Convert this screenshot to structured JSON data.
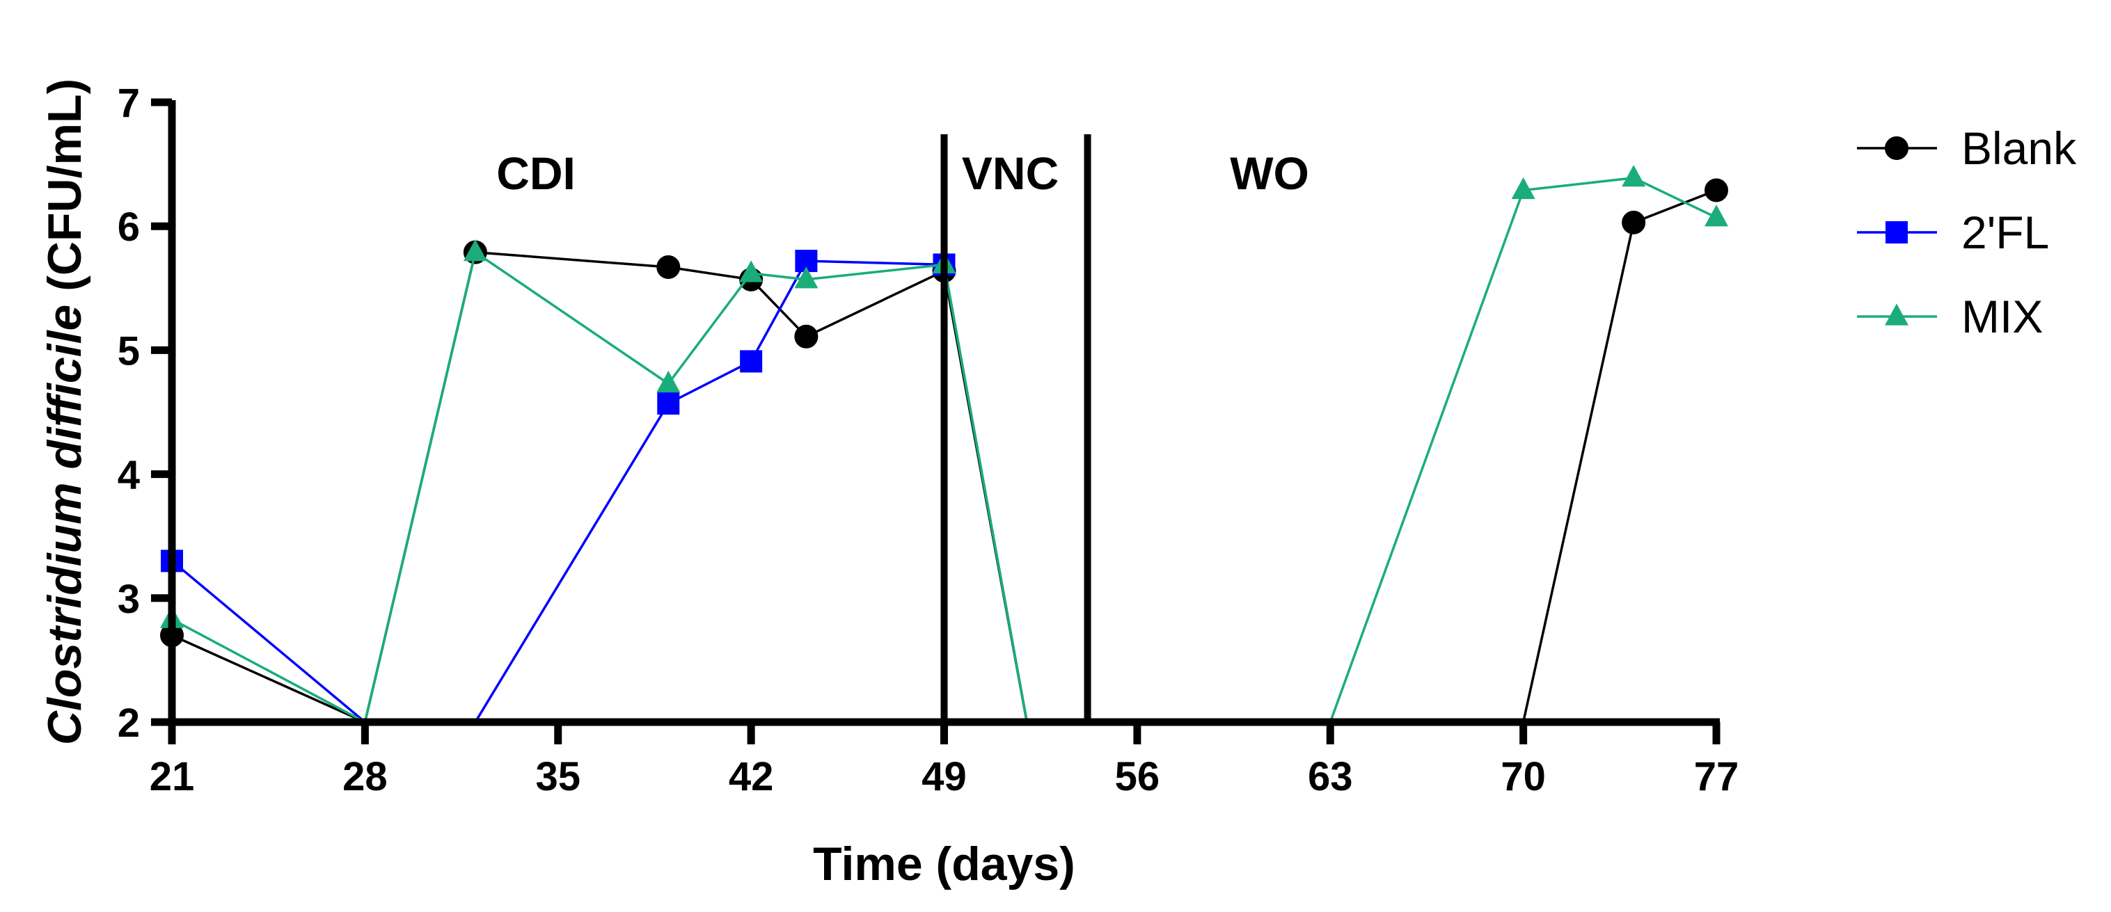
{
  "chart_data": {
    "type": "line",
    "xlabel": "Time (days)",
    "ylabel_italic": "Clostridium difficile",
    "ylabel_unit": " (CFU/mL)",
    "xlim": [
      21,
      77
    ],
    "ylim": [
      2,
      7
    ],
    "xticks": [
      21,
      28,
      35,
      42,
      49,
      56,
      63,
      70,
      77
    ],
    "yticks": [
      2,
      3,
      4,
      5,
      6,
      7
    ],
    "phases": [
      {
        "label": "CDI",
        "x_center": 34.2
      },
      {
        "label": "VNC",
        "x_center": 51.4
      },
      {
        "label": "WO",
        "x_center": 60.8
      }
    ],
    "phase_lines": [
      49,
      54.2
    ],
    "series": [
      {
        "name": "Blank",
        "color": "#000000",
        "marker": "circle",
        "points": [
          {
            "x": 21,
            "y": 2.7,
            "m": true
          },
          {
            "x": 28,
            "y": 2.0,
            "m": false
          },
          {
            "x": 32,
            "y": 5.79,
            "m": true
          },
          {
            "x": 39,
            "y": 5.67,
            "m": true
          },
          {
            "x": 42,
            "y": 5.57,
            "m": true
          },
          {
            "x": 44,
            "y": 5.11,
            "m": true
          },
          {
            "x": 49,
            "y": 5.64,
            "m": true
          },
          {
            "x": 52,
            "y": 2.0,
            "m": false
          },
          {
            "x": 70,
            "y": 2.0,
            "m": false
          },
          {
            "x": 74,
            "y": 6.03,
            "m": true
          },
          {
            "x": 77,
            "y": 6.29,
            "m": true
          }
        ]
      },
      {
        "name": "2'FL",
        "color": "#0000ff",
        "marker": "square",
        "points": [
          {
            "x": 21,
            "y": 3.3,
            "m": true
          },
          {
            "x": 28,
            "y": 2.0,
            "m": false
          },
          {
            "x": 32,
            "y": 2.0,
            "m": false
          },
          {
            "x": 39,
            "y": 4.57,
            "m": true
          },
          {
            "x": 42,
            "y": 4.91,
            "m": true
          },
          {
            "x": 44,
            "y": 5.72,
            "m": true
          },
          {
            "x": 49,
            "y": 5.69,
            "m": true
          },
          {
            "x": 52,
            "y": 2.0,
            "m": false
          }
        ]
      },
      {
        "name": "MIX",
        "color": "#1aad79",
        "marker": "triangle",
        "points": [
          {
            "x": 21,
            "y": 2.83,
            "m": true
          },
          {
            "x": 28,
            "y": 2.0,
            "m": false
          },
          {
            "x": 32,
            "y": 5.79,
            "m": true
          },
          {
            "x": 39,
            "y": 4.73,
            "m": true
          },
          {
            "x": 42,
            "y": 5.62,
            "m": true
          },
          {
            "x": 44,
            "y": 5.57,
            "m": true
          },
          {
            "x": 49,
            "y": 5.69,
            "m": true
          },
          {
            "x": 52,
            "y": 2.0,
            "m": false
          },
          {
            "x": 63,
            "y": 2.0,
            "m": false
          },
          {
            "x": 70,
            "y": 6.29,
            "m": true
          },
          {
            "x": 74,
            "y": 6.39,
            "m": true
          },
          {
            "x": 77,
            "y": 6.07,
            "m": true
          }
        ]
      }
    ],
    "legend": {
      "placement": "top-right"
    }
  }
}
